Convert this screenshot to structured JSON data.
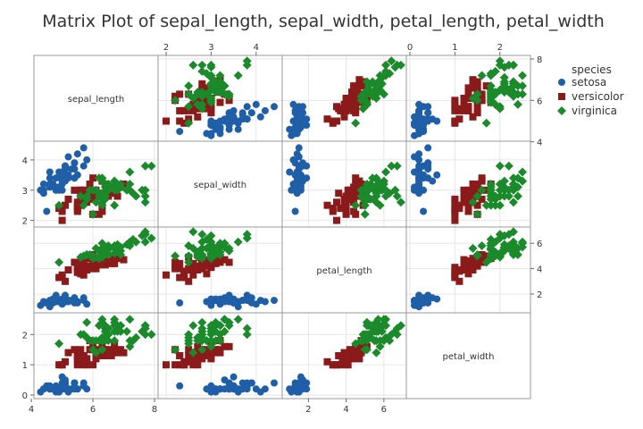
{
  "chart_data": {
    "type": "scatter",
    "title": "Matrix Plot of sepal_length, sepal_width, petal_length, petal_width",
    "variables": [
      "sepal_length",
      "sepal_width",
      "petal_length",
      "petal_width"
    ],
    "legend": {
      "title": "species",
      "position": "top-right",
      "entries": [
        {
          "name": "setosa",
          "color": "#1f5fa8",
          "marker": "circle"
        },
        {
          "name": "versicolor",
          "color": "#8b1a1a",
          "marker": "square"
        },
        {
          "name": "virginica",
          "color": "#1a8a2a",
          "marker": "diamond"
        }
      ]
    },
    "axes": {
      "sepal_length": {
        "range": [
          4.2,
          8.0
        ],
        "ticks": [
          4,
          6,
          8
        ],
        "tick_side": "bottom"
      },
      "sepal_width": {
        "range": [
          1.9,
          4.5
        ],
        "ticks": [
          2,
          3,
          4
        ],
        "tick_side": "top-left"
      },
      "petal_length": {
        "range": [
          0.8,
          7.0
        ],
        "ticks": [
          2,
          4,
          6
        ],
        "tick_side": "bottom-right"
      },
      "petal_width": {
        "range": [
          0.0,
          2.6
        ],
        "ticks": [
          0,
          1,
          2
        ],
        "tick_side": "top-left"
      }
    },
    "series": [
      {
        "name": "setosa",
        "points": [
          [
            5.1,
            3.5,
            1.4,
            0.2
          ],
          [
            4.9,
            3.0,
            1.4,
            0.2
          ],
          [
            4.7,
            3.2,
            1.3,
            0.2
          ],
          [
            4.6,
            3.1,
            1.5,
            0.2
          ],
          [
            5.0,
            3.6,
            1.4,
            0.2
          ],
          [
            5.4,
            3.9,
            1.7,
            0.4
          ],
          [
            4.6,
            3.4,
            1.4,
            0.3
          ],
          [
            5.0,
            3.4,
            1.5,
            0.2
          ],
          [
            4.4,
            2.9,
            1.4,
            0.2
          ],
          [
            4.9,
            3.1,
            1.5,
            0.1
          ],
          [
            5.4,
            3.7,
            1.5,
            0.2
          ],
          [
            4.8,
            3.4,
            1.6,
            0.2
          ],
          [
            4.8,
            3.0,
            1.4,
            0.1
          ],
          [
            4.3,
            3.0,
            1.1,
            0.1
          ],
          [
            5.8,
            4.0,
            1.2,
            0.2
          ],
          [
            5.7,
            4.4,
            1.5,
            0.4
          ],
          [
            5.4,
            3.9,
            1.3,
            0.4
          ],
          [
            5.1,
            3.5,
            1.4,
            0.3
          ],
          [
            5.7,
            3.8,
            1.7,
            0.3
          ],
          [
            5.1,
            3.8,
            1.5,
            0.3
          ],
          [
            5.4,
            3.4,
            1.7,
            0.2
          ],
          [
            5.1,
            3.7,
            1.5,
            0.4
          ],
          [
            4.6,
            3.6,
            1.0,
            0.2
          ],
          [
            5.1,
            3.3,
            1.7,
            0.5
          ],
          [
            4.8,
            3.4,
            1.9,
            0.2
          ],
          [
            5.0,
            3.0,
            1.6,
            0.2
          ],
          [
            5.0,
            3.4,
            1.6,
            0.4
          ],
          [
            5.2,
            3.5,
            1.5,
            0.2
          ],
          [
            5.2,
            3.4,
            1.4,
            0.2
          ],
          [
            4.7,
            3.2,
            1.6,
            0.2
          ],
          [
            4.8,
            3.1,
            1.6,
            0.2
          ],
          [
            5.4,
            3.4,
            1.5,
            0.4
          ],
          [
            5.2,
            4.1,
            1.5,
            0.1
          ],
          [
            5.5,
            4.2,
            1.4,
            0.2
          ],
          [
            4.9,
            3.1,
            1.5,
            0.2
          ],
          [
            5.0,
            3.2,
            1.2,
            0.2
          ],
          [
            5.5,
            3.5,
            1.3,
            0.2
          ],
          [
            4.9,
            3.6,
            1.4,
            0.1
          ],
          [
            4.4,
            3.0,
            1.3,
            0.2
          ],
          [
            5.1,
            3.4,
            1.5,
            0.2
          ],
          [
            5.0,
            3.5,
            1.3,
            0.3
          ],
          [
            4.5,
            2.3,
            1.3,
            0.3
          ],
          [
            4.4,
            3.2,
            1.3,
            0.2
          ],
          [
            5.0,
            3.5,
            1.6,
            0.6
          ],
          [
            5.1,
            3.8,
            1.9,
            0.4
          ],
          [
            4.8,
            3.0,
            1.4,
            0.3
          ],
          [
            5.1,
            3.8,
            1.6,
            0.2
          ],
          [
            4.6,
            3.2,
            1.4,
            0.2
          ],
          [
            5.3,
            3.7,
            1.5,
            0.2
          ],
          [
            5.0,
            3.3,
            1.4,
            0.2
          ]
        ]
      },
      {
        "name": "versicolor",
        "points": [
          [
            7.0,
            3.2,
            4.7,
            1.4
          ],
          [
            6.4,
            3.2,
            4.5,
            1.5
          ],
          [
            6.9,
            3.1,
            4.9,
            1.5
          ],
          [
            5.5,
            2.3,
            4.0,
            1.3
          ],
          [
            6.5,
            2.8,
            4.6,
            1.5
          ],
          [
            5.7,
            2.8,
            4.5,
            1.3
          ],
          [
            6.3,
            3.3,
            4.7,
            1.6
          ],
          [
            4.9,
            2.4,
            3.3,
            1.0
          ],
          [
            6.6,
            2.9,
            4.6,
            1.3
          ],
          [
            5.2,
            2.7,
            3.9,
            1.4
          ],
          [
            5.0,
            2.0,
            3.5,
            1.0
          ],
          [
            5.9,
            3.0,
            4.2,
            1.5
          ],
          [
            6.0,
            2.2,
            4.0,
            1.0
          ],
          [
            6.1,
            2.9,
            4.7,
            1.4
          ],
          [
            5.6,
            2.9,
            3.6,
            1.3
          ],
          [
            6.7,
            3.1,
            4.4,
            1.4
          ],
          [
            5.6,
            3.0,
            4.5,
            1.5
          ],
          [
            5.8,
            2.7,
            4.1,
            1.0
          ],
          [
            6.2,
            2.2,
            4.5,
            1.5
          ],
          [
            5.6,
            2.5,
            3.9,
            1.1
          ],
          [
            5.9,
            3.2,
            4.8,
            1.8
          ],
          [
            6.1,
            2.8,
            4.0,
            1.3
          ],
          [
            6.3,
            2.5,
            4.9,
            1.5
          ],
          [
            6.1,
            2.8,
            4.7,
            1.2
          ],
          [
            6.4,
            2.9,
            4.3,
            1.3
          ],
          [
            6.6,
            3.0,
            4.4,
            1.4
          ],
          [
            6.8,
            2.8,
            4.8,
            1.4
          ],
          [
            6.7,
            3.0,
            5.0,
            1.7
          ],
          [
            6.0,
            2.9,
            4.5,
            1.5
          ],
          [
            5.7,
            2.6,
            3.5,
            1.0
          ],
          [
            5.5,
            2.4,
            3.8,
            1.1
          ],
          [
            5.5,
            2.4,
            3.7,
            1.0
          ],
          [
            5.8,
            2.7,
            3.9,
            1.2
          ],
          [
            6.0,
            2.7,
            5.1,
            1.6
          ],
          [
            5.4,
            3.0,
            4.5,
            1.5
          ],
          [
            6.0,
            3.4,
            4.5,
            1.6
          ],
          [
            6.7,
            3.1,
            4.7,
            1.5
          ],
          [
            6.3,
            2.3,
            4.4,
            1.3
          ],
          [
            5.6,
            3.0,
            4.1,
            1.3
          ],
          [
            5.5,
            2.5,
            4.0,
            1.3
          ],
          [
            5.5,
            2.6,
            4.4,
            1.2
          ],
          [
            6.1,
            3.0,
            4.6,
            1.4
          ],
          [
            5.8,
            2.6,
            4.0,
            1.2
          ],
          [
            5.0,
            2.3,
            3.3,
            1.0
          ],
          [
            5.6,
            2.7,
            4.2,
            1.3
          ],
          [
            5.7,
            3.0,
            4.2,
            1.2
          ],
          [
            5.7,
            2.9,
            4.2,
            1.3
          ],
          [
            6.2,
            2.9,
            4.3,
            1.3
          ],
          [
            5.1,
            2.5,
            3.0,
            1.1
          ],
          [
            5.7,
            2.8,
            4.1,
            1.3
          ]
        ]
      },
      {
        "name": "virginica",
        "points": [
          [
            6.3,
            3.3,
            6.0,
            2.5
          ],
          [
            5.8,
            2.7,
            5.1,
            1.9
          ],
          [
            7.1,
            3.0,
            5.9,
            2.1
          ],
          [
            6.3,
            2.9,
            5.6,
            1.8
          ],
          [
            6.5,
            3.0,
            5.8,
            2.2
          ],
          [
            7.6,
            3.0,
            6.6,
            2.1
          ],
          [
            4.9,
            2.5,
            4.5,
            1.7
          ],
          [
            7.3,
            2.9,
            6.3,
            1.8
          ],
          [
            6.7,
            2.5,
            5.8,
            1.8
          ],
          [
            7.2,
            3.6,
            6.1,
            2.5
          ],
          [
            6.5,
            3.2,
            5.1,
            2.0
          ],
          [
            6.4,
            2.7,
            5.3,
            1.9
          ],
          [
            6.8,
            3.0,
            5.5,
            2.1
          ],
          [
            5.7,
            2.5,
            5.0,
            2.0
          ],
          [
            5.8,
            2.8,
            5.1,
            2.4
          ],
          [
            6.4,
            3.2,
            5.3,
            2.3
          ],
          [
            6.5,
            3.0,
            5.5,
            1.8
          ],
          [
            7.7,
            3.8,
            6.7,
            2.2
          ],
          [
            7.7,
            2.6,
            6.9,
            2.3
          ],
          [
            6.0,
            2.2,
            5.0,
            1.5
          ],
          [
            6.9,
            3.2,
            5.7,
            2.3
          ],
          [
            5.6,
            2.8,
            4.9,
            2.0
          ],
          [
            7.7,
            2.8,
            6.7,
            2.0
          ],
          [
            6.3,
            2.7,
            4.9,
            1.8
          ],
          [
            6.7,
            3.3,
            5.7,
            2.1
          ],
          [
            7.2,
            3.2,
            6.0,
            1.8
          ],
          [
            6.2,
            2.8,
            4.8,
            1.8
          ],
          [
            6.1,
            3.0,
            4.9,
            1.8
          ],
          [
            6.4,
            2.8,
            5.6,
            2.1
          ],
          [
            7.2,
            3.0,
            5.8,
            1.6
          ],
          [
            7.4,
            2.8,
            6.1,
            1.9
          ],
          [
            7.9,
            3.8,
            6.4,
            2.0
          ],
          [
            6.4,
            2.8,
            5.6,
            2.2
          ],
          [
            6.3,
            2.8,
            5.1,
            1.5
          ],
          [
            6.1,
            2.6,
            5.6,
            1.4
          ],
          [
            7.7,
            3.0,
            6.1,
            2.3
          ],
          [
            6.3,
            3.4,
            5.6,
            2.4
          ],
          [
            6.4,
            3.1,
            5.5,
            1.8
          ],
          [
            6.0,
            3.0,
            4.8,
            1.8
          ],
          [
            6.9,
            3.1,
            5.4,
            2.1
          ],
          [
            6.7,
            3.1,
            5.6,
            2.4
          ],
          [
            6.9,
            3.1,
            5.1,
            2.3
          ],
          [
            5.8,
            2.7,
            5.1,
            1.9
          ],
          [
            6.8,
            3.2,
            5.9,
            2.3
          ],
          [
            6.7,
            3.3,
            5.7,
            2.5
          ],
          [
            6.7,
            3.0,
            5.2,
            2.3
          ],
          [
            6.3,
            2.5,
            5.0,
            1.9
          ],
          [
            6.5,
            3.0,
            5.2,
            2.0
          ],
          [
            6.2,
            3.4,
            5.4,
            2.3
          ],
          [
            5.9,
            3.0,
            5.1,
            1.8
          ]
        ]
      }
    ],
    "grid": true
  }
}
